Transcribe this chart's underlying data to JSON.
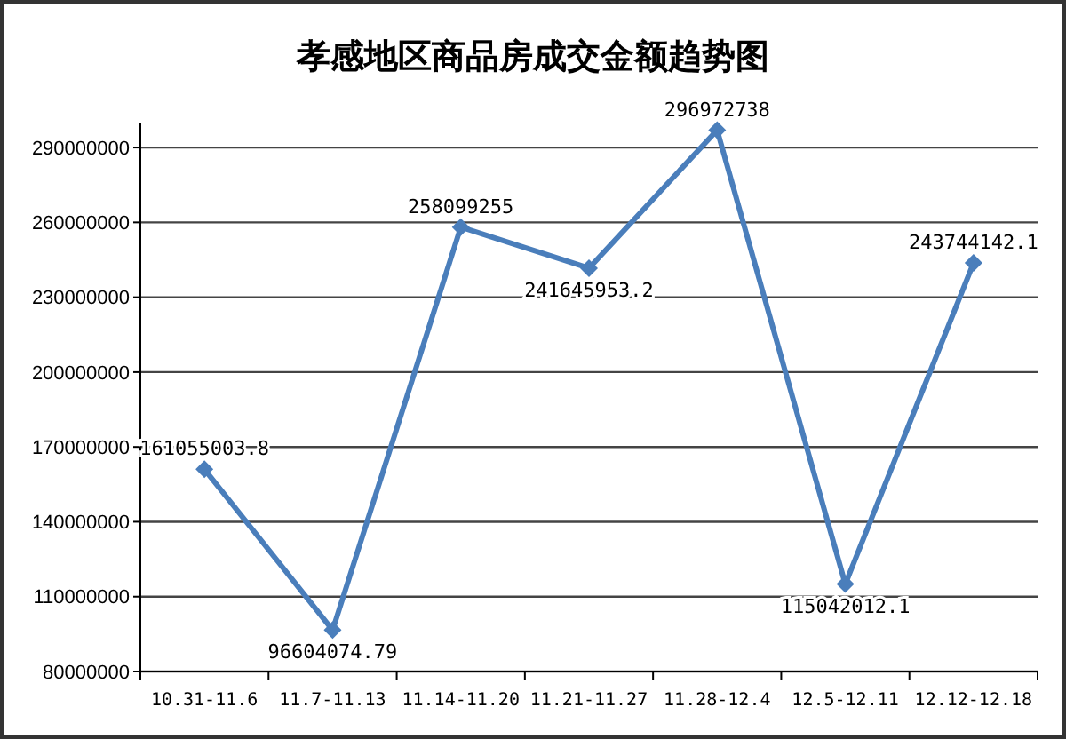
{
  "chart_data": {
    "type": "line",
    "title": "孝感地区商品房成交金额趋势图",
    "categories": [
      "10.31-11.6",
      "11.7-11.13",
      "11.14-11.20",
      "11.21-11.27",
      "11.28-12.4",
      "12.5-12.11",
      "12.12-12.18"
    ],
    "series": [
      {
        "color": "#4a7ebb",
        "values": [
          161055003.8,
          96604074.79,
          258099255,
          241645953.2,
          296972738,
          115042012.1,
          243744142.1
        ]
      }
    ],
    "ylim": [
      80000000,
      300000000
    ],
    "yticks": [
      80000000,
      110000000,
      140000000,
      170000000,
      200000000,
      230000000,
      260000000,
      290000000
    ],
    "grid": "y",
    "marker": "diamond",
    "line_style": "solid",
    "data_labels": true
  }
}
